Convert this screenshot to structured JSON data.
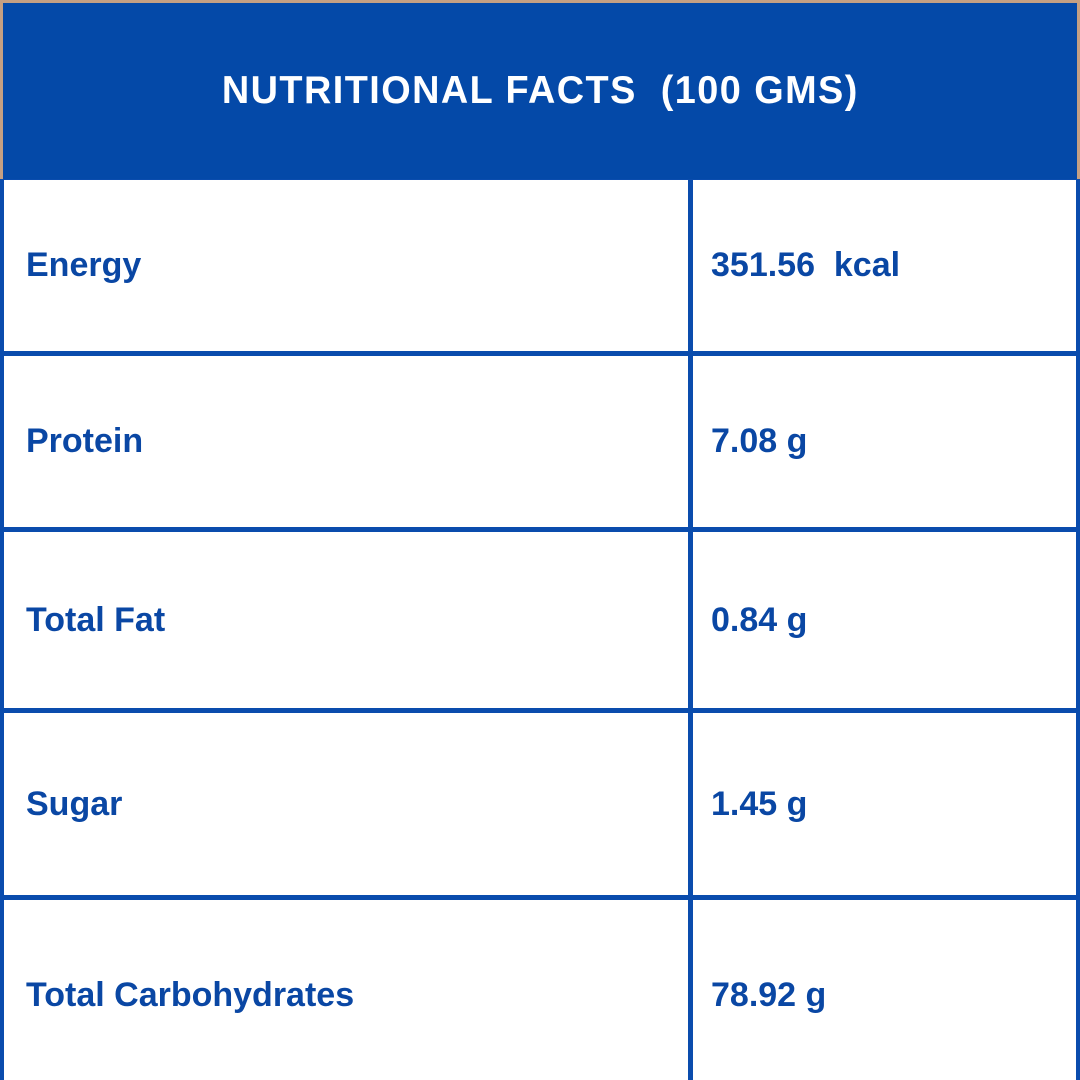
{
  "header": {
    "title": "NUTRITIONAL FACTS  (100 GMS)",
    "serving_basis": "100 GMS"
  },
  "table": {
    "rows": [
      {
        "label": "Energy",
        "value": "351.56  kcal"
      },
      {
        "label": "Protein",
        "value": "7.08 g"
      },
      {
        "label": "Total Fat",
        "value": "0.84 g"
      },
      {
        "label": "Sugar",
        "value": "1.45 g"
      },
      {
        "label": "Total Carbohydrates",
        "value": "78.92 g"
      }
    ]
  },
  "colors": {
    "header_background": "#0449A8",
    "table_border": "#0A4CAD",
    "text": "#0A47A4",
    "frame_tan": "#C5A083",
    "cell_background": "#FFFFFF",
    "header_text": "#FFFFFF"
  }
}
